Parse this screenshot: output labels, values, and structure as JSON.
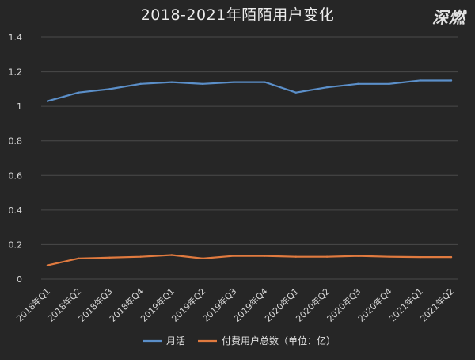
{
  "chart_data": {
    "type": "line",
    "title": "2018-2021年陌陌用户变化",
    "watermark": "深燃",
    "categories": [
      "2018年Q1",
      "2018年Q2",
      "2018年Q3",
      "2018年Q4",
      "2019年Q1",
      "2019年Q2",
      "2019年Q3",
      "2019年Q4",
      "2020年Q1",
      "2020年Q2",
      "2020年Q3",
      "2020年Q4",
      "2021年Q1",
      "2021年Q2"
    ],
    "series": [
      {
        "name": "月活",
        "color": "#5b8fc9",
        "values": [
          1.03,
          1.08,
          1.1,
          1.13,
          1.14,
          1.13,
          1.14,
          1.14,
          1.08,
          1.11,
          1.13,
          1.13,
          1.15,
          1.15
        ]
      },
      {
        "name": "付费用户总数（单位：亿）",
        "color": "#e07a3f",
        "values": [
          0.08,
          0.12,
          0.125,
          0.13,
          0.14,
          0.12,
          0.135,
          0.135,
          0.13,
          0.13,
          0.135,
          0.13,
          0.128,
          0.128
        ]
      }
    ],
    "yticks": [
      "0",
      "0.2",
      "0.4",
      "0.6",
      "0.8",
      "1",
      "1.2",
      "1.4"
    ],
    "ylim": [
      0,
      1.4
    ],
    "grid": true,
    "legend_position": "bottom",
    "grid_color": "#4a4a4a"
  }
}
